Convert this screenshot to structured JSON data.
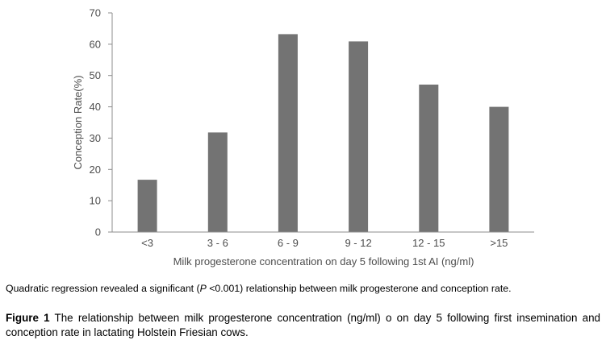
{
  "chart_data": {
    "type": "bar",
    "categories": [
      "<3",
      "3 - 6",
      "6 - 9",
      "9 - 12",
      "12 - 15",
      ">15"
    ],
    "values": [
      16.7,
      31.8,
      63.2,
      60.9,
      47.1,
      40.0
    ],
    "xlabel": "Milk progesterone concentration on day 5 following 1st AI (ng/ml)",
    "ylabel": "Conception Rate(%)",
    "ylim": [
      0,
      70
    ],
    "yticks": [
      0,
      10,
      20,
      30,
      40,
      50,
      60,
      70
    ],
    "grid": false,
    "legend": "none",
    "bar_color": "#737373"
  },
  "note": {
    "before": "Quadratic regression revealed a significant (",
    "italic": "P",
    "after": " <0.001) relationship between milk progesterone and conception rate."
  },
  "caption": {
    "label": "Figure 1",
    "text": " The relationship between milk progesterone concentration (ng/ml) o on day 5 following first insemination and conception rate in lactating Holstein Friesian cows."
  }
}
